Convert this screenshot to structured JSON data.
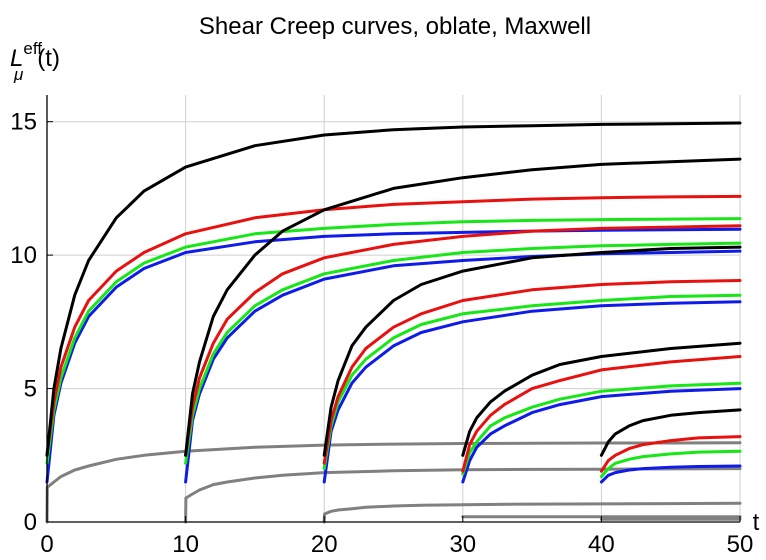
{
  "chart_data": {
    "type": "line",
    "title": "Shear Creep curves, oblate, Maxwell",
    "ylabel": "L_μ^eff(t)",
    "ylabel_base": "L",
    "ylabel_sub": "μ",
    "ylabel_sup": "eff",
    "ylabel_arg": "(t)",
    "xlabel": "t",
    "xlim": [
      0,
      50
    ],
    "ylim": [
      0,
      16
    ],
    "xticks": [
      "0",
      "10",
      "20",
      "30",
      "40",
      "50"
    ],
    "yticks": [
      "0",
      "5",
      "10",
      "15"
    ],
    "xtick_values": [
      0,
      10,
      20,
      30,
      40,
      50
    ],
    "ytick_values": [
      0,
      5,
      10,
      15
    ],
    "grid": true,
    "colors": {
      "black": "#000000",
      "red": "#e8110f",
      "green": "#17e617",
      "blue": "#0f1be8",
      "gray": "#808080"
    },
    "series": [
      {
        "color": "black",
        "x": [
          0,
          0.5,
          1,
          2,
          3,
          5,
          7,
          10,
          15,
          20,
          25,
          30,
          35,
          40,
          45,
          50
        ],
        "y": [
          2.5,
          5.0,
          6.5,
          8.5,
          9.8,
          11.4,
          12.4,
          13.3,
          14.1,
          14.5,
          14.7,
          14.8,
          14.85,
          14.9,
          14.92,
          14.95
        ]
      },
      {
        "color": "red",
        "x": [
          0,
          0.5,
          1,
          2,
          3,
          5,
          7,
          10,
          15,
          20,
          25,
          30,
          35,
          40,
          45,
          50
        ],
        "y": [
          2.5,
          4.5,
          5.8,
          7.3,
          8.3,
          9.4,
          10.1,
          10.8,
          11.4,
          11.7,
          11.9,
          12.0,
          12.1,
          12.15,
          12.18,
          12.2
        ]
      },
      {
        "color": "green",
        "x": [
          0,
          0.5,
          1,
          2,
          3,
          5,
          7,
          10,
          15,
          20,
          25,
          30,
          35,
          40,
          45,
          50
        ],
        "y": [
          2.2,
          4.2,
          5.4,
          6.9,
          7.9,
          9.0,
          9.7,
          10.3,
          10.8,
          11.0,
          11.15,
          11.25,
          11.3,
          11.33,
          11.35,
          11.37
        ]
      },
      {
        "color": "blue",
        "x": [
          0,
          0.5,
          1,
          2,
          3,
          5,
          7,
          10,
          15,
          20,
          25,
          30,
          35,
          40,
          45,
          50
        ],
        "y": [
          1.5,
          4.0,
          5.2,
          6.7,
          7.7,
          8.8,
          9.5,
          10.1,
          10.5,
          10.7,
          10.8,
          10.85,
          10.9,
          10.93,
          10.95,
          10.97
        ]
      },
      {
        "color": "gray",
        "x": [
          0,
          0.02,
          0.5,
          1,
          2,
          3,
          5,
          7,
          10,
          15,
          20,
          25,
          30,
          35,
          40,
          45,
          50
        ],
        "y": [
          0,
          1.3,
          1.5,
          1.7,
          1.95,
          2.1,
          2.35,
          2.5,
          2.65,
          2.8,
          2.88,
          2.92,
          2.94,
          2.95,
          2.96,
          2.96,
          2.97
        ]
      },
      {
        "color": "black",
        "x": [
          10,
          10.5,
          11,
          12,
          13,
          15,
          17,
          20,
          25,
          30,
          35,
          40,
          45,
          50
        ],
        "y": [
          2.5,
          4.8,
          6.0,
          7.7,
          8.7,
          10.0,
          10.9,
          11.7,
          12.5,
          12.9,
          13.2,
          13.4,
          13.5,
          13.6
        ]
      },
      {
        "color": "red",
        "x": [
          10,
          10.5,
          11,
          12,
          13,
          15,
          17,
          20,
          25,
          30,
          35,
          40,
          45,
          50
        ],
        "y": [
          2.5,
          4.3,
          5.4,
          6.7,
          7.6,
          8.6,
          9.3,
          9.9,
          10.4,
          10.7,
          10.9,
          11.0,
          11.05,
          11.1
        ]
      },
      {
        "color": "green",
        "x": [
          10,
          10.5,
          11,
          12,
          13,
          15,
          17,
          20,
          25,
          30,
          35,
          40,
          45,
          50
        ],
        "y": [
          2.2,
          4.0,
          5.0,
          6.3,
          7.1,
          8.1,
          8.7,
          9.3,
          9.8,
          10.1,
          10.25,
          10.35,
          10.4,
          10.45
        ]
      },
      {
        "color": "blue",
        "x": [
          10,
          10.5,
          11,
          12,
          13,
          15,
          17,
          20,
          25,
          30,
          35,
          40,
          45,
          50
        ],
        "y": [
          1.5,
          3.8,
          4.8,
          6.1,
          6.9,
          7.9,
          8.5,
          9.1,
          9.6,
          9.8,
          9.95,
          10.05,
          10.1,
          10.15
        ]
      },
      {
        "color": "gray",
        "x": [
          10,
          10.02,
          10.5,
          11,
          12,
          13,
          15,
          17,
          20,
          25,
          30,
          35,
          40,
          45,
          50
        ],
        "y": [
          0,
          0.9,
          1.05,
          1.2,
          1.4,
          1.5,
          1.65,
          1.75,
          1.85,
          1.92,
          1.96,
          1.97,
          1.98,
          1.99,
          2.0
        ]
      },
      {
        "color": "black",
        "x": [
          20,
          20.5,
          21,
          22,
          23,
          25,
          27,
          30,
          35,
          40,
          45,
          50
        ],
        "y": [
          2.5,
          4.3,
          5.3,
          6.6,
          7.3,
          8.3,
          8.9,
          9.4,
          9.9,
          10.1,
          10.25,
          10.3
        ]
      },
      {
        "color": "red",
        "x": [
          20,
          20.5,
          21,
          22,
          23,
          25,
          27,
          30,
          35,
          40,
          45,
          50
        ],
        "y": [
          2.2,
          3.8,
          4.7,
          5.8,
          6.5,
          7.3,
          7.8,
          8.3,
          8.7,
          8.9,
          9.0,
          9.05
        ]
      },
      {
        "color": "green",
        "x": [
          20,
          20.5,
          21,
          22,
          23,
          25,
          27,
          30,
          35,
          40,
          45,
          50
        ],
        "y": [
          2.0,
          3.6,
          4.5,
          5.5,
          6.1,
          6.9,
          7.4,
          7.8,
          8.1,
          8.3,
          8.45,
          8.5
        ]
      },
      {
        "color": "blue",
        "x": [
          20,
          20.5,
          21,
          22,
          23,
          25,
          27,
          30,
          35,
          40,
          45,
          50
        ],
        "y": [
          1.5,
          3.4,
          4.2,
          5.2,
          5.8,
          6.6,
          7.1,
          7.5,
          7.9,
          8.1,
          8.2,
          8.25
        ]
      },
      {
        "color": "gray",
        "x": [
          20,
          20.02,
          20.5,
          21,
          22,
          23,
          25,
          27,
          30,
          35,
          40,
          45,
          50
        ],
        "y": [
          0,
          0.3,
          0.4,
          0.45,
          0.5,
          0.55,
          0.6,
          0.63,
          0.65,
          0.67,
          0.68,
          0.69,
          0.7
        ]
      },
      {
        "color": "black",
        "x": [
          30,
          30.5,
          31,
          32,
          33,
          35,
          37,
          40,
          45,
          50
        ],
        "y": [
          2.5,
          3.4,
          3.9,
          4.5,
          4.9,
          5.5,
          5.9,
          6.2,
          6.5,
          6.7
        ]
      },
      {
        "color": "red",
        "x": [
          30,
          30.5,
          31,
          32,
          33,
          35,
          37,
          40,
          45,
          50
        ],
        "y": [
          1.9,
          2.9,
          3.4,
          4.0,
          4.4,
          5.0,
          5.3,
          5.7,
          6.0,
          6.2
        ]
      },
      {
        "color": "green",
        "x": [
          30,
          30.5,
          31,
          32,
          33,
          35,
          37,
          40,
          45,
          50
        ],
        "y": [
          1.8,
          2.6,
          3.0,
          3.6,
          3.9,
          4.3,
          4.6,
          4.9,
          5.1,
          5.2
        ]
      },
      {
        "color": "blue",
        "x": [
          30,
          30.5,
          31,
          32,
          33,
          35,
          37,
          40,
          45,
          50
        ],
        "y": [
          1.5,
          2.3,
          2.8,
          3.3,
          3.6,
          4.1,
          4.4,
          4.7,
          4.9,
          5.0
        ]
      },
      {
        "color": "gray",
        "x": [
          30,
          50
        ],
        "y": [
          0.2,
          0.2
        ]
      },
      {
        "color": "black",
        "x": [
          40,
          40.5,
          41,
          42,
          43,
          45,
          47,
          50
        ],
        "y": [
          2.5,
          3.0,
          3.3,
          3.6,
          3.8,
          4.0,
          4.1,
          4.2
        ]
      },
      {
        "color": "red",
        "x": [
          40,
          40.5,
          41,
          42,
          43,
          45,
          47,
          50
        ],
        "y": [
          1.9,
          2.3,
          2.5,
          2.75,
          2.9,
          3.05,
          3.15,
          3.2
        ]
      },
      {
        "color": "green",
        "x": [
          40,
          40.5,
          41,
          42,
          43,
          45,
          47,
          50
        ],
        "y": [
          1.7,
          2.0,
          2.2,
          2.35,
          2.45,
          2.55,
          2.62,
          2.65
        ]
      },
      {
        "color": "blue",
        "x": [
          40,
          40.5,
          41,
          42,
          43,
          45,
          47,
          50
        ],
        "y": [
          1.5,
          1.75,
          1.85,
          1.95,
          2.0,
          2.05,
          2.08,
          2.1
        ]
      },
      {
        "color": "gray",
        "x": [
          40,
          50
        ],
        "y": [
          0.1,
          0.1
        ]
      }
    ]
  }
}
